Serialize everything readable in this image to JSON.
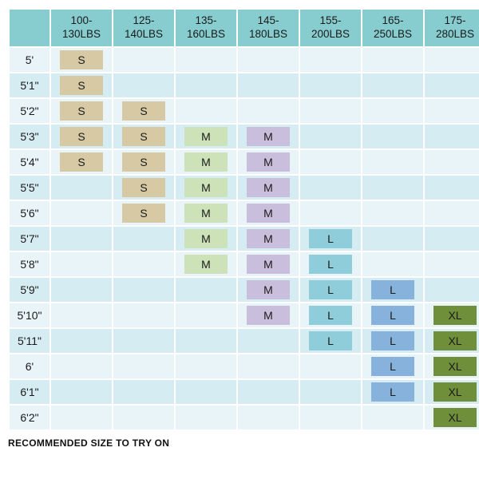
{
  "table": {
    "type": "table",
    "colors": {
      "header_bg": "#87cdd0",
      "row_bg_even": "#e9f4f8",
      "row_bg_odd": "#d5ecf3",
      "size_bg": {
        "S": "#d6c9a3",
        "M_green": "#cde2b8",
        "M_purple": "#c9bfdc",
        "L_blue1": "#90cddb",
        "L_blue2": "#87b2dc",
        "XL": "#6f8f3a"
      },
      "text": "#1a1a1a"
    },
    "columns": [
      "100-\n130LBS",
      "125-\n140LBS",
      "135-\n160LBS",
      "145-\n180LBS",
      "155-\n200LBS",
      "165-\n250LBS",
      "175-\n280LBS"
    ],
    "rows": [
      {
        "h": "5'",
        "cells": [
          {
            "v": "S",
            "c": "S"
          },
          null,
          null,
          null,
          null,
          null,
          null
        ]
      },
      {
        "h": "5'1\"",
        "cells": [
          {
            "v": "S",
            "c": "S"
          },
          null,
          null,
          null,
          null,
          null,
          null
        ]
      },
      {
        "h": "5'2\"",
        "cells": [
          {
            "v": "S",
            "c": "S"
          },
          {
            "v": "S",
            "c": "S"
          },
          null,
          null,
          null,
          null,
          null
        ]
      },
      {
        "h": "5'3\"",
        "cells": [
          {
            "v": "S",
            "c": "S"
          },
          {
            "v": "S",
            "c": "S"
          },
          {
            "v": "M",
            "c": "M_green"
          },
          {
            "v": "M",
            "c": "M_purple"
          },
          null,
          null,
          null
        ]
      },
      {
        "h": "5'4\"",
        "cells": [
          {
            "v": "S",
            "c": "S"
          },
          {
            "v": "S",
            "c": "S"
          },
          {
            "v": "M",
            "c": "M_green"
          },
          {
            "v": "M",
            "c": "M_purple"
          },
          null,
          null,
          null
        ]
      },
      {
        "h": "5'5\"",
        "cells": [
          null,
          {
            "v": "S",
            "c": "S"
          },
          {
            "v": "M",
            "c": "M_green"
          },
          {
            "v": "M",
            "c": "M_purple"
          },
          null,
          null,
          null
        ]
      },
      {
        "h": "5'6\"",
        "cells": [
          null,
          {
            "v": "S",
            "c": "S"
          },
          {
            "v": "M",
            "c": "M_green"
          },
          {
            "v": "M",
            "c": "M_purple"
          },
          null,
          null,
          null
        ]
      },
      {
        "h": "5'7\"",
        "cells": [
          null,
          null,
          {
            "v": "M",
            "c": "M_green"
          },
          {
            "v": "M",
            "c": "M_purple"
          },
          {
            "v": "L",
            "c": "L_blue1"
          },
          null,
          null
        ]
      },
      {
        "h": "5'8\"",
        "cells": [
          null,
          null,
          {
            "v": "M",
            "c": "M_green"
          },
          {
            "v": "M",
            "c": "M_purple"
          },
          {
            "v": "L",
            "c": "L_blue1"
          },
          null,
          null
        ]
      },
      {
        "h": "5'9\"",
        "cells": [
          null,
          null,
          null,
          {
            "v": "M",
            "c": "M_purple"
          },
          {
            "v": "L",
            "c": "L_blue1"
          },
          {
            "v": "L",
            "c": "L_blue2"
          },
          null
        ]
      },
      {
        "h": "5'10\"",
        "cells": [
          null,
          null,
          null,
          {
            "v": "M",
            "c": "M_purple"
          },
          {
            "v": "L",
            "c": "L_blue1"
          },
          {
            "v": "L",
            "c": "L_blue2"
          },
          {
            "v": "XL",
            "c": "XL"
          }
        ]
      },
      {
        "h": "5'11\"",
        "cells": [
          null,
          null,
          null,
          null,
          {
            "v": "L",
            "c": "L_blue1"
          },
          {
            "v": "L",
            "c": "L_blue2"
          },
          {
            "v": "XL",
            "c": "XL"
          }
        ]
      },
      {
        "h": "6'",
        "cells": [
          null,
          null,
          null,
          null,
          null,
          {
            "v": "L",
            "c": "L_blue2"
          },
          {
            "v": "XL",
            "c": "XL"
          }
        ]
      },
      {
        "h": "6'1\"",
        "cells": [
          null,
          null,
          null,
          null,
          null,
          {
            "v": "L",
            "c": "L_blue2"
          },
          {
            "v": "XL",
            "c": "XL"
          }
        ]
      },
      {
        "h": "6'2\"",
        "cells": [
          null,
          null,
          null,
          null,
          null,
          null,
          {
            "v": "XL",
            "c": "XL"
          }
        ]
      }
    ]
  },
  "footer": "RECOMMENDED SIZE TO TRY ON"
}
